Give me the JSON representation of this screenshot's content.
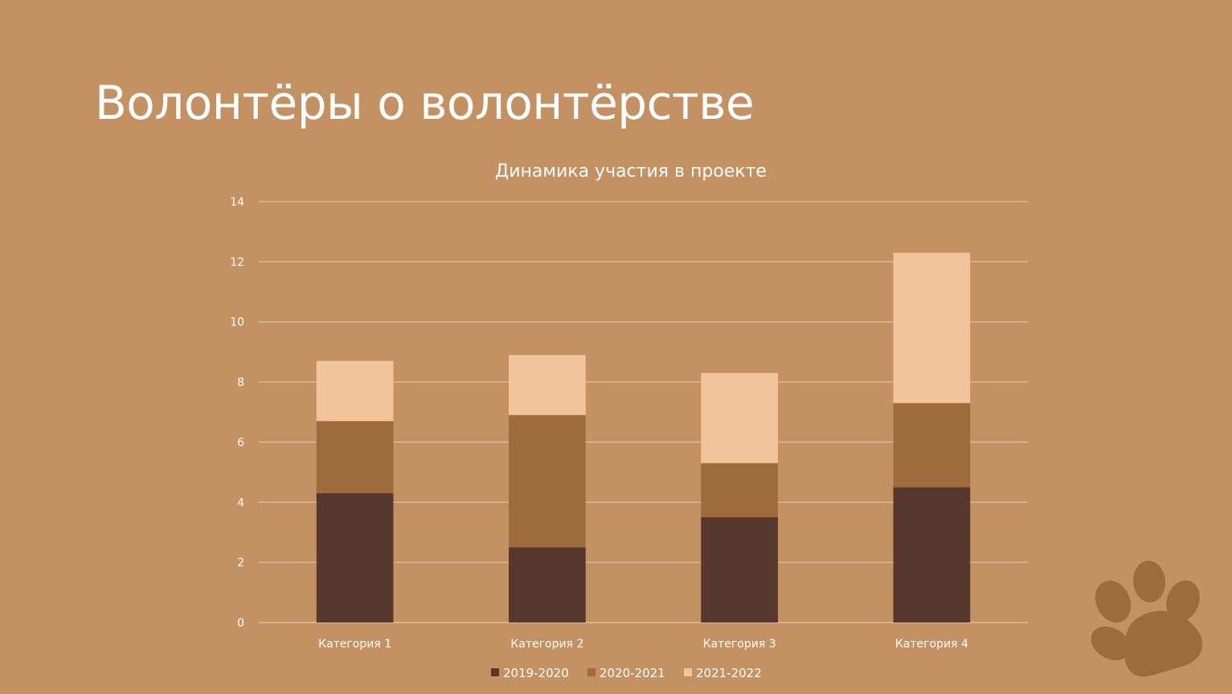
{
  "slide": {
    "title": "Волонтёры о волонтёрстве",
    "background": "#C49162",
    "decoration_icon": "paw-print-icon",
    "decoration_color": "#A06B3C"
  },
  "chart_data": {
    "type": "bar",
    "stacked": true,
    "title": "Динамика участия в проекте",
    "xlabel": "",
    "ylabel": "",
    "categories": [
      "Категория 1",
      "Категория 2",
      "Категория 3",
      "Категория 4"
    ],
    "series": [
      {
        "name": "2019-2020",
        "values": [
          4.3,
          2.5,
          3.5,
          4.5
        ],
        "color": "#56382E"
      },
      {
        "name": "2020-2021",
        "values": [
          2.4,
          4.4,
          1.8,
          2.8
        ],
        "color": "#A06B3C"
      },
      {
        "name": "2021-2022",
        "values": [
          2.0,
          2.0,
          3.0,
          5.0
        ],
        "color": "#F2C49C"
      }
    ],
    "ylim": [
      0,
      14
    ],
    "yticks": [
      0,
      2,
      4,
      6,
      8,
      10,
      12,
      14
    ],
    "grid": true,
    "legend_position": "bottom"
  }
}
